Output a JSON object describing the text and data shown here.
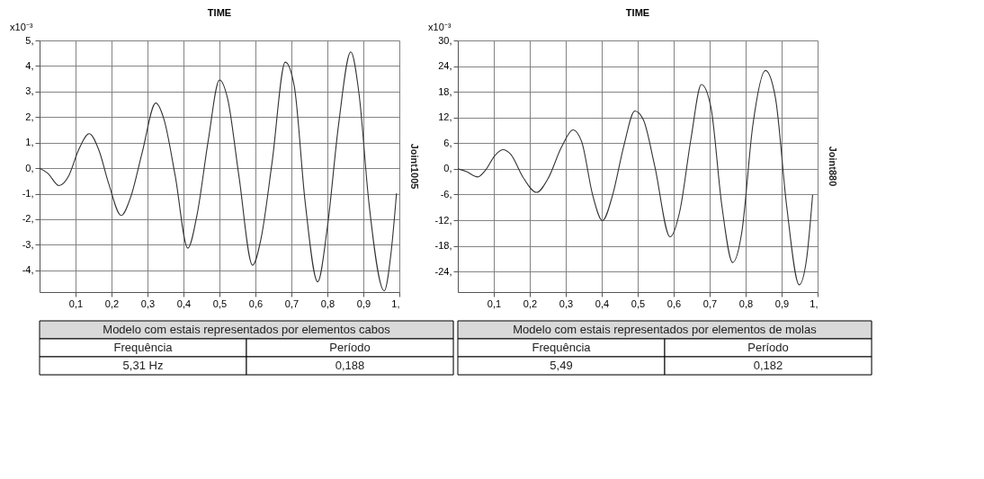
{
  "chart_data": [
    {
      "type": "line",
      "title": "TIME",
      "ylabel": "x10⁻³",
      "y2label": "Joint1005",
      "grid": true,
      "marker": "none",
      "line_style": "solid",
      "xlim": [
        0,
        1
      ],
      "ylim": [
        -4.85,
        5
      ],
      "xticks": [
        {
          "value": 0.1,
          "label": "0,1"
        },
        {
          "value": 0.2,
          "label": "0,2"
        },
        {
          "value": 0.3,
          "label": "0,3"
        },
        {
          "value": 0.4,
          "label": "0,4"
        },
        {
          "value": 0.5,
          "label": "0,5"
        },
        {
          "value": 0.6,
          "label": "0,6"
        },
        {
          "value": 0.7,
          "label": "0,7"
        },
        {
          "value": 0.8,
          "label": "0,8"
        },
        {
          "value": 0.9,
          "label": "0,9"
        },
        {
          "value": 1,
          "label": "1,"
        }
      ],
      "yticks": [
        {
          "value": -4,
          "label": "-4,"
        },
        {
          "value": -3,
          "label": "-3,"
        },
        {
          "value": -2,
          "label": "-2,"
        },
        {
          "value": -1,
          "label": "-1,"
        },
        {
          "value": 0,
          "label": "0,"
        },
        {
          "value": 1,
          "label": "1,"
        },
        {
          "value": 2,
          "label": "2,"
        },
        {
          "value": 3,
          "label": "3,"
        },
        {
          "value": 4,
          "label": "4,"
        },
        {
          "value": 5,
          "label": "5,"
        }
      ],
      "series": [
        {
          "color": "#333333",
          "x": [
            0,
            0.023,
            0.054,
            0.081,
            0.108,
            0.138,
            0.165,
            0.192,
            0.227,
            0.254,
            0.285,
            0.323,
            0.346,
            0.377,
            0.412,
            0.438,
            0.469,
            0.5,
            0.523,
            0.554,
            0.592,
            0.615,
            0.646,
            0.683,
            0.708,
            0.738,
            0.773,
            0.8,
            0.831,
            0.865,
            0.888,
            0.915,
            0.958,
            0.977,
            0.992
          ],
          "values": [
            0,
            -0.2,
            -0.68,
            -0.3,
            0.7,
            1.35,
            0.7,
            -0.6,
            -1.85,
            -1.1,
            0.6,
            2.55,
            1.9,
            -0.3,
            -3.13,
            -1.8,
            1.1,
            3.45,
            2.7,
            -0.3,
            -3.8,
            -2.8,
            0.2,
            4.15,
            3.2,
            -1.3,
            -4.45,
            -2.3,
            1.7,
            4.55,
            2.9,
            -1.3,
            -4.8,
            -3.3,
            -1.0
          ]
        }
      ],
      "annotations": [
        "Modelo com estais representados por elementos cabos",
        "Frequência",
        "Período",
        "5,31 Hz",
        "0,188"
      ]
    },
    {
      "type": "line",
      "title": "TIME",
      "ylabel": "x10⁻³",
      "y2label": "Joint880",
      "grid": true,
      "marker": "none",
      "line_style": "solid",
      "xlim": [
        0,
        1
      ],
      "ylim": [
        -28.8,
        30
      ],
      "xticks": [
        {
          "value": 0.1,
          "label": "0,1"
        },
        {
          "value": 0.2,
          "label": "0,2"
        },
        {
          "value": 0.3,
          "label": "0,3"
        },
        {
          "value": 0.4,
          "label": "0,4"
        },
        {
          "value": 0.5,
          "label": "0,5"
        },
        {
          "value": 0.6,
          "label": "0,6"
        },
        {
          "value": 0.7,
          "label": "0,7"
        },
        {
          "value": 0.8,
          "label": "0,8"
        },
        {
          "value": 0.9,
          "label": "0,9"
        },
        {
          "value": 1,
          "label": "1,"
        }
      ],
      "yticks": [
        {
          "value": -24,
          "label": "-24,"
        },
        {
          "value": -18,
          "label": "-18,"
        },
        {
          "value": -12,
          "label": "-12,"
        },
        {
          "value": -6,
          "label": "-6,"
        },
        {
          "value": 0,
          "label": "0,"
        },
        {
          "value": 6,
          "label": "6,"
        },
        {
          "value": 12,
          "label": "12,"
        },
        {
          "value": 18,
          "label": "18,"
        },
        {
          "value": 24,
          "label": "24,"
        },
        {
          "value": 30,
          "label": "30,"
        }
      ],
      "series": [
        {
          "color": "#333333",
          "x": [
            0,
            0.023,
            0.055,
            0.078,
            0.102,
            0.125,
            0.148,
            0.18,
            0.219,
            0.25,
            0.289,
            0.32,
            0.344,
            0.375,
            0.402,
            0.43,
            0.461,
            0.492,
            0.516,
            0.547,
            0.59,
            0.617,
            0.648,
            0.677,
            0.703,
            0.734,
            0.764,
            0.789,
            0.82,
            0.855,
            0.883,
            0.914,
            0.949,
            0.969,
            0.986
          ],
          "values": [
            0,
            -0.6,
            -1.9,
            -0.2,
            3.0,
            4.5,
            3.3,
            -1.8,
            -5.5,
            -2.4,
            5.2,
            9.1,
            6.4,
            -6.2,
            -12.1,
            -6.2,
            5.2,
            13.5,
            11.4,
            0.8,
            -15.9,
            -9.9,
            7.0,
            19.7,
            14.6,
            -8.7,
            -21.9,
            -15.0,
            10.2,
            23.0,
            16.5,
            -8.7,
            -27.1,
            -21.3,
            -6.2
          ]
        }
      ],
      "annotations": [
        "Modelo com estais representados por elementos de molas",
        "Frequência",
        "Período",
        "5,49",
        "0,182"
      ]
    }
  ]
}
